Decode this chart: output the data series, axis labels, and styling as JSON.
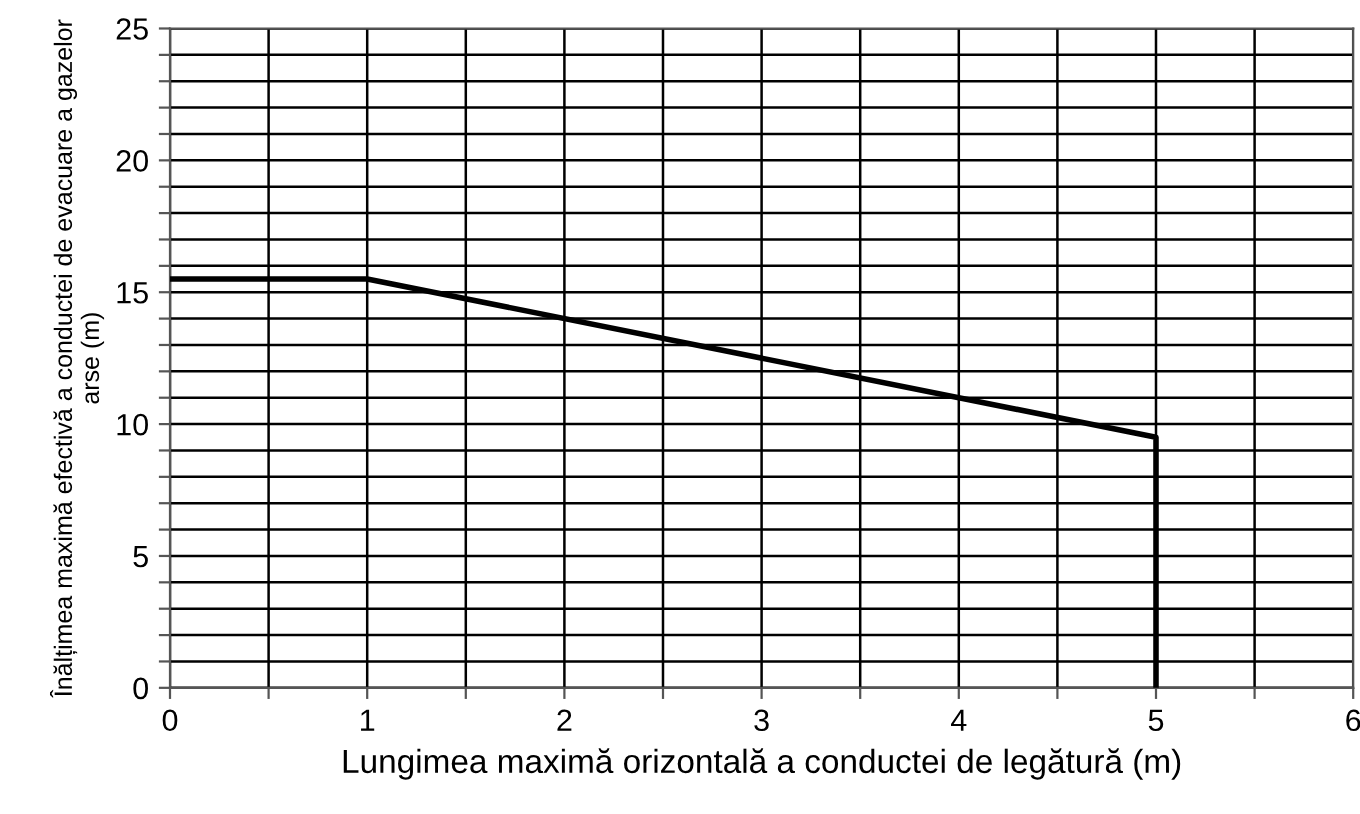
{
  "chart_data": {
    "type": "line",
    "xlabel": "Lungimea maximă orizontală a conductei de legătură (m)",
    "ylabel": "Înălțimea maximă efectivă a conductei de evacuare a gazelor arse (m)",
    "x": [
      0,
      1,
      5,
      5
    ],
    "series": [
      {
        "color": "#000000",
        "values": [
          15.5,
          15.5,
          9.5,
          0
        ]
      }
    ],
    "xlim": [
      0,
      6
    ],
    "ylim": [
      0,
      25
    ],
    "xticks": [
      0,
      {
        "value": 0.5,
        "label": null
      },
      1,
      {
        "value": 1.5,
        "label": null
      },
      2,
      {
        "value": 2.5,
        "label": null
      },
      3,
      {
        "value": 3.5,
        "label": null
      },
      4,
      {
        "value": 4.5,
        "label": null
      },
      5,
      {
        "value": 5.5,
        "label": null
      },
      6
    ],
    "yticks": [
      0,
      {
        "value": 1,
        "label": null
      },
      {
        "value": 2,
        "label": null
      },
      {
        "value": 3,
        "label": null
      },
      {
        "value": 4,
        "label": null
      },
      5,
      {
        "value": 6,
        "label": null
      },
      {
        "value": 7,
        "label": null
      },
      {
        "value": 8,
        "label": null
      },
      {
        "value": 9,
        "label": null
      },
      10,
      {
        "value": 11,
        "label": null
      },
      {
        "value": 12,
        "label": null
      },
      {
        "value": 13,
        "label": null
      },
      {
        "value": 14,
        "label": null
      },
      15,
      {
        "value": 16,
        "label": null
      },
      {
        "value": 17,
        "label": null
      },
      {
        "value": 18,
        "label": null
      },
      {
        "value": 19,
        "label": null
      },
      20,
      {
        "value": 21,
        "label": null
      },
      {
        "value": 22,
        "label": null
      },
      {
        "value": 23,
        "label": null
      },
      {
        "value": 24,
        "label": null
      },
      25
    ],
    "grid": true,
    "marker": "none",
    "line_style": "solid"
  }
}
